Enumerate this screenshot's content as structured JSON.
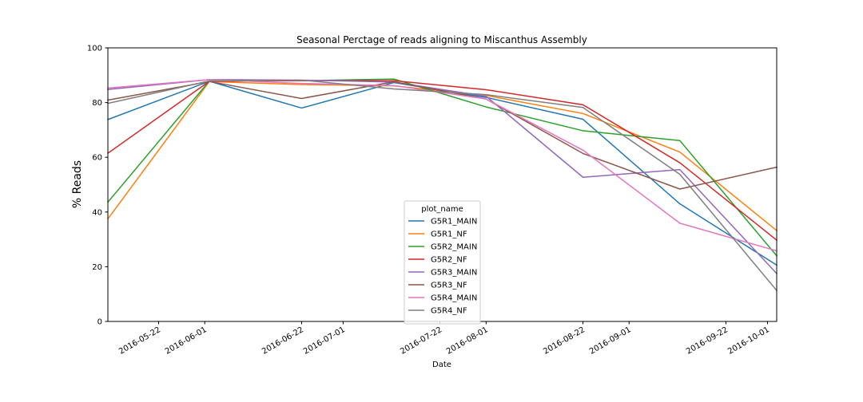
{
  "chart_data": {
    "type": "line",
    "title": "Seasonal Perctage of reads aligning to Miscanthus Assembly",
    "xlabel": "Date",
    "ylabel": "% Reads",
    "ylim": [
      0,
      100
    ],
    "yticks": [
      0,
      20,
      40,
      60,
      80,
      100
    ],
    "xlim": [
      "2016-05-11",
      "2016-10-03"
    ],
    "xticks": [
      "2016-05-22",
      "2016-06-01",
      "2016-06-22",
      "2016-07-01",
      "2016-07-22",
      "2016-08-01",
      "2016-08-22",
      "2016-09-01",
      "2016-09-22",
      "2016-10-01"
    ],
    "x": [
      "2016-05-11",
      "2016-06-02",
      "2016-06-22",
      "2016-07-12",
      "2016-08-01",
      "2016-08-22",
      "2016-09-12",
      "2016-10-03"
    ],
    "grid": false,
    "legend": {
      "title": "plot_name",
      "placement": "lower-center"
    },
    "series": [
      {
        "name": "G5R1_MAIN",
        "color": "#1f77b4",
        "values": [
          73.8,
          87.8,
          78.0,
          87.3,
          81.9,
          73.9,
          43.0,
          20.6
        ]
      },
      {
        "name": "G5R1_NF",
        "color": "#ff7f0e",
        "values": [
          37.5,
          87.7,
          86.6,
          86.1,
          82.6,
          76.0,
          61.9,
          33.2
        ]
      },
      {
        "name": "G5R2_MAIN",
        "color": "#2ca02c",
        "values": [
          43.6,
          87.9,
          88.0,
          88.6,
          78.4,
          69.7,
          66.1,
          24.0
        ]
      },
      {
        "name": "G5R2_NF",
        "color": "#d62728",
        "values": [
          61.5,
          87.8,
          88.0,
          88.0,
          84.7,
          79.2,
          58.0,
          29.7
        ]
      },
      {
        "name": "G5R3_MAIN",
        "color": "#9467bd",
        "values": [
          84.8,
          88.4,
          88.2,
          87.5,
          82.3,
          52.7,
          55.5,
          17.5
        ]
      },
      {
        "name": "G5R3_NF",
        "color": "#8c564b",
        "values": [
          80.9,
          87.7,
          81.5,
          87.6,
          81.3,
          61.4,
          48.4,
          56.4
        ]
      },
      {
        "name": "G5R4_MAIN",
        "color": "#e377c2",
        "values": [
          85.3,
          88.4,
          87.0,
          86.2,
          81.3,
          62.6,
          35.9,
          25.8
        ]
      },
      {
        "name": "G5R4_NF",
        "color": "#7f7f7f",
        "values": [
          79.7,
          87.9,
          88.2,
          85.0,
          82.9,
          78.2,
          53.8,
          11.3
        ]
      }
    ]
  }
}
